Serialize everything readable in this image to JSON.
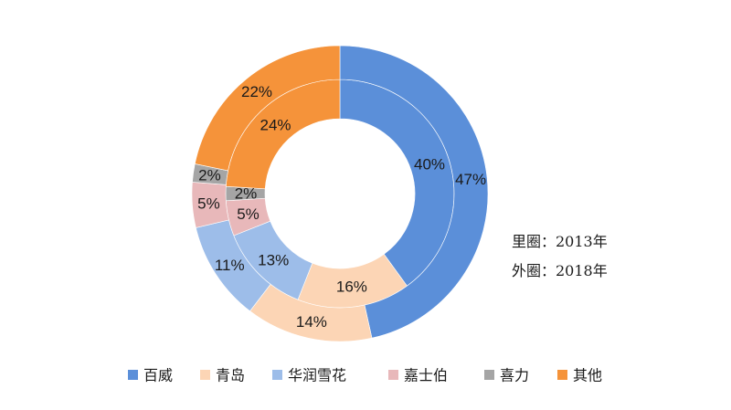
{
  "chart_data": {
    "type": "donut",
    "categories": [
      "百威",
      "青岛",
      "华润雪花",
      "嘉士伯",
      "喜力",
      "其他"
    ],
    "colors": [
      "#5b8fd9",
      "#fcd5b5",
      "#9dbde9",
      "#e8b8ba",
      "#a5a5a5",
      "#f5933a"
    ],
    "series": [
      {
        "values": [
          40,
          16,
          13,
          5,
          2,
          24
        ]
      },
      {
        "values": [
          47,
          14,
          11,
          5,
          2,
          22
        ]
      }
    ],
    "annotations": [
      "里圈：2013年",
      "外圈：2018年"
    ]
  }
}
